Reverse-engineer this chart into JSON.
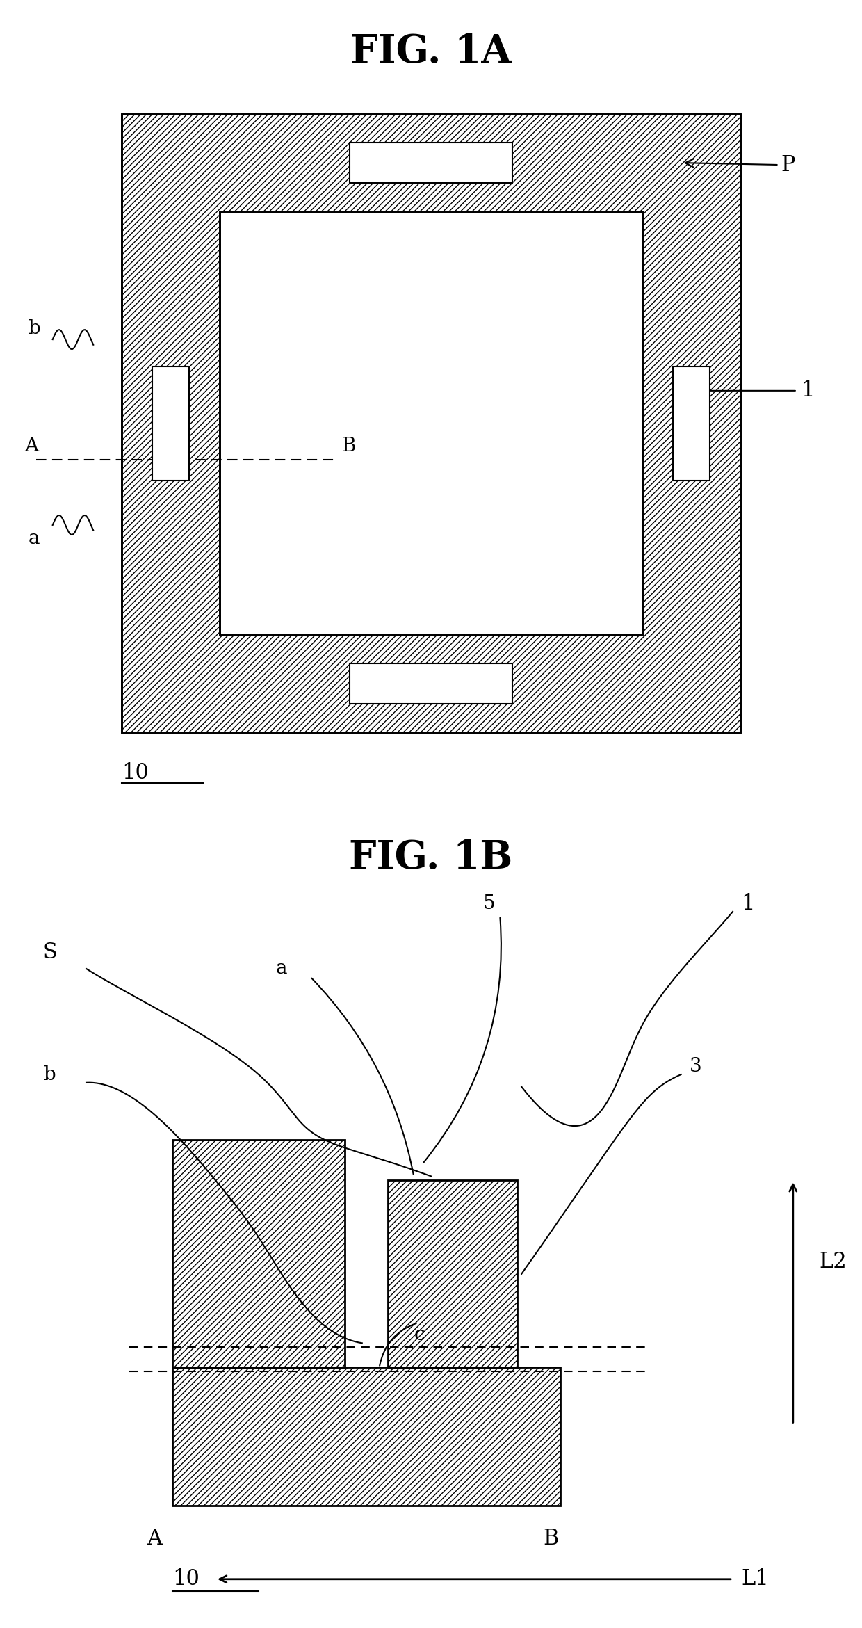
{
  "fig1a_title": "FIG. 1A",
  "fig1b_title": "FIG. 1B",
  "bg_color": "#ffffff",
  "hatch_pattern": "////",
  "label_10_1": "10",
  "label_10_2": "10",
  "label_P": "P",
  "label_1_top": "1",
  "label_A_top": "A",
  "label_B_top": "B",
  "label_a_top": "a",
  "label_b_top": "b",
  "label_S": "S",
  "label_a_bot": "a",
  "label_b_bot": "b",
  "label_c_bot": "c",
  "label_1_bot": "1",
  "label_3_bot": "3",
  "label_5_bot": "5",
  "label_A_bot": "A",
  "label_B_bot": "B",
  "label_L1": "L1",
  "label_L2": "L2"
}
